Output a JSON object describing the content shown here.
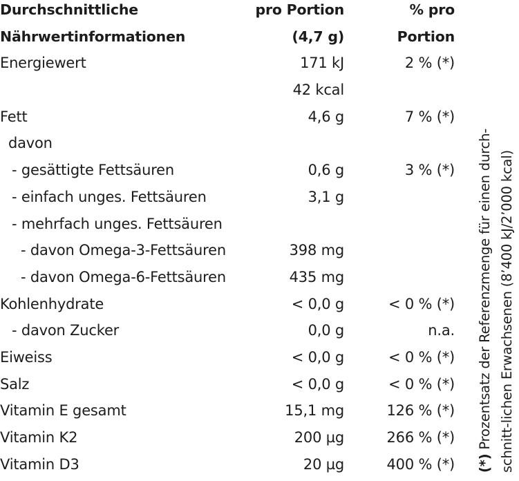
{
  "header": {
    "label_line1": "Durchschnittliche",
    "label_line2": "Nährwertinformationen",
    "portion_line1": "pro Portion",
    "portion_line2": "(4,7 g)",
    "pct_line1": "% pro",
    "pct_line2": "Portion"
  },
  "rows": [
    {
      "label": "Energiewert",
      "portion": "171 kJ",
      "pct": "2 % (*)"
    },
    {
      "label": "",
      "portion": "42 kcal",
      "pct": ""
    },
    {
      "label": "Fett",
      "portion": "4,6 g",
      "pct": "7 % (*)"
    },
    {
      "label": "davon",
      "portion": "",
      "pct": ""
    },
    {
      "label": "- gesättigte Fettsäuren",
      "portion": "0,6 g",
      "pct": "3 % (*)"
    },
    {
      "label": "- einfach unges. Fettsäuren",
      "portion": "3,1 g",
      "pct": ""
    },
    {
      "label": "- mehrfach unges. Fettsäuren",
      "portion": "",
      "pct": ""
    },
    {
      "label": "- davon Omega-3-Fettsäuren",
      "portion": "398 mg",
      "pct": ""
    },
    {
      "label": "- davon Omega-6-Fettsäuren",
      "portion": "435 mg",
      "pct": ""
    },
    {
      "label": "Kohlenhydrate",
      "portion": "< 0,0 g",
      "pct": "< 0 % (*)"
    },
    {
      "label": "- davon Zucker",
      "portion": "0,0 g",
      "pct": "n.a."
    },
    {
      "label": "Eiweiss",
      "portion": "< 0,0 g",
      "pct": "< 0 % (*)"
    },
    {
      "label": "Salz",
      "portion": "< 0,0 g",
      "pct": "< 0 % (*)"
    },
    {
      "label": "Vitamin E gesamt",
      "portion": "15,1 mg",
      "pct": "126 % (*)"
    },
    {
      "label": "Vitamin K2",
      "portion": "200 µg",
      "pct": "266 % (*)"
    },
    {
      "label": "Vitamin D3",
      "portion": "20 µg",
      "pct": "400 % (*)"
    }
  ],
  "footnote": {
    "star": "(*)",
    "line1": "Prozentsatz der Referenzmenge für einen durch-",
    "line2": "schnitt-lichen Erwachsenen (8’400 kJ/2’000 kcal)"
  }
}
